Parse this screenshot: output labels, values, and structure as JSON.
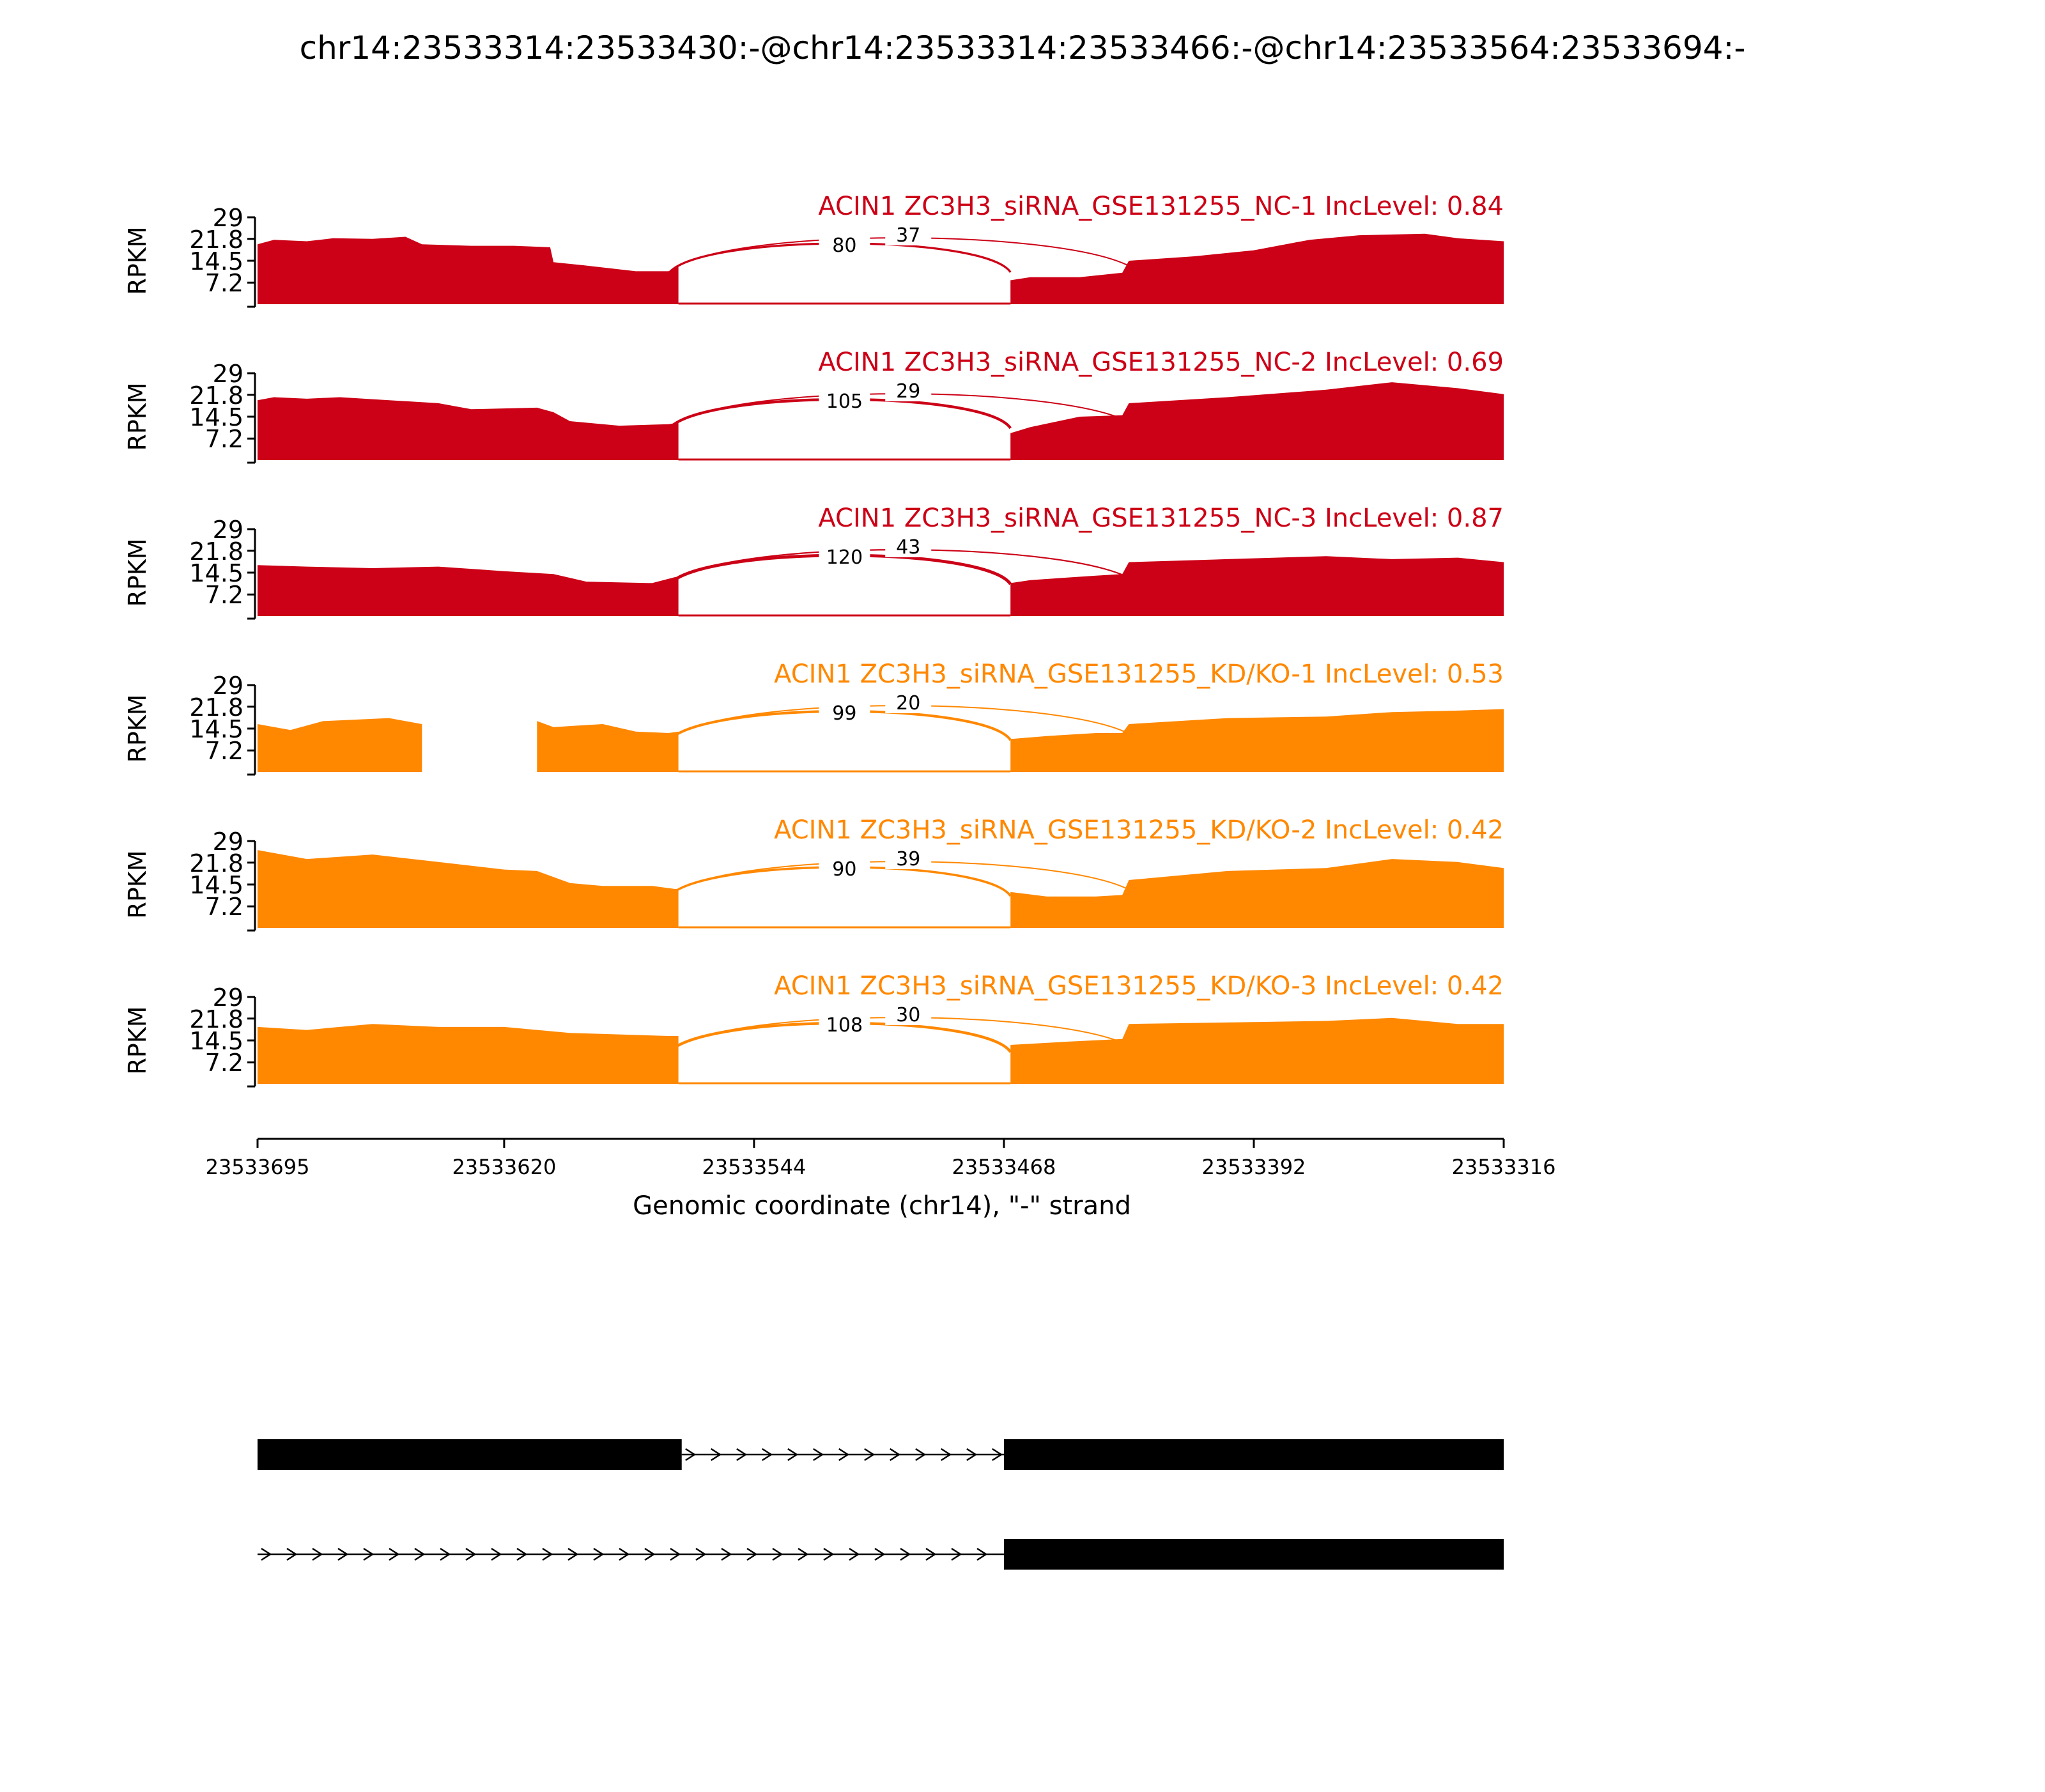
{
  "title": "chr14:23533314:23533430:-@chr14:23533314:23533466:-@chr14:23533564:23533694:-",
  "colors": {
    "nc": "#cc0016",
    "kd": "#ff8800",
    "text": "#000000",
    "axis": "#000000"
  },
  "chart_data": {
    "type": "area",
    "chart_kind": "sashimi",
    "ylabel": "RPKM",
    "yticks": [
      7.2,
      14.5,
      21.8,
      29
    ],
    "ylim": [
      0,
      29
    ],
    "xlabel": "Genomic coordinate (chr14), \"-\" strand",
    "xticks": [
      23533695,
      23533620,
      23533544,
      23533468,
      23533392,
      23533316
    ],
    "xlim": [
      23533695,
      23533316
    ],
    "exon_regions": [
      [
        23533695,
        23533566
      ],
      [
        23533466,
        23533316
      ]
    ],
    "junction_targets": [
      23533568,
      23533466,
      23533430
    ],
    "series": [
      {
        "name": "ACIN1 ZC3H3_siRNA_GSE131255_NC-1 IncLevel: 0.84",
        "group": "nc",
        "coverage": [
          [
            23533695,
            20.0
          ],
          [
            23533690,
            21.5
          ],
          [
            23533680,
            21.0
          ],
          [
            23533672,
            22.0
          ],
          [
            23533660,
            21.8
          ],
          [
            23533650,
            22.5
          ],
          [
            23533645,
            20.0
          ],
          [
            23533630,
            19.5
          ],
          [
            23533617,
            19.5
          ],
          [
            23533606,
            19.0
          ],
          [
            23533605,
            14.0
          ],
          [
            23533596,
            13.0
          ],
          [
            23533580,
            11.0
          ],
          [
            23533570,
            11.0
          ],
          [
            23533568,
            12.0
          ],
          [
            23533567,
            12.5
          ],
          [
            23533466,
            8.0
          ],
          [
            23533460,
            9.0
          ],
          [
            23533445,
            9.0
          ],
          [
            23533432,
            10.5
          ],
          [
            23533430,
            14.5
          ],
          [
            23533410,
            16.0
          ],
          [
            23533392,
            18.0
          ],
          [
            23533375,
            21.5
          ],
          [
            23533360,
            23.0
          ],
          [
            23533340,
            23.5
          ],
          [
            23533330,
            22.0
          ],
          [
            23533316,
            21.0
          ]
        ],
        "junctions": [
          {
            "count": 80,
            "label": "80"
          },
          {
            "count": 37,
            "label": "37"
          }
        ]
      },
      {
        "name": "ACIN1 ZC3H3_siRNA_GSE131255_NC-2 IncLevel: 0.69",
        "group": "nc",
        "coverage": [
          [
            23533695,
            20.0
          ],
          [
            23533690,
            21.0
          ],
          [
            23533680,
            20.5
          ],
          [
            23533670,
            21.0
          ],
          [
            23533655,
            20.0
          ],
          [
            23533640,
            19.0
          ],
          [
            23533630,
            17.0
          ],
          [
            23533610,
            17.5
          ],
          [
            23533605,
            16.0
          ],
          [
            23533600,
            13.0
          ],
          [
            23533585,
            11.5
          ],
          [
            23533570,
            12.0
          ],
          [
            23533567,
            12.5
          ],
          [
            23533466,
            9.0
          ],
          [
            23533460,
            11.0
          ],
          [
            23533445,
            14.5
          ],
          [
            23533432,
            15.0
          ],
          [
            23533430,
            19.0
          ],
          [
            23533400,
            21.0
          ],
          [
            23533370,
            23.5
          ],
          [
            23533350,
            26.0
          ],
          [
            23533330,
            24.0
          ],
          [
            23533316,
            22.0
          ]
        ],
        "junctions": [
          {
            "count": 105,
            "label": "105"
          },
          {
            "count": 29,
            "label": "29"
          }
        ]
      },
      {
        "name": "ACIN1 ZC3H3_siRNA_GSE131255_NC-3 IncLevel: 0.87",
        "group": "nc",
        "coverage": [
          [
            23533695,
            17.0
          ],
          [
            23533680,
            16.5
          ],
          [
            23533660,
            16.0
          ],
          [
            23533640,
            16.5
          ],
          [
            23533620,
            15.0
          ],
          [
            23533605,
            14.0
          ],
          [
            23533595,
            11.5
          ],
          [
            23533575,
            11.0
          ],
          [
            23533568,
            13.0
          ],
          [
            23533567,
            13.0
          ],
          [
            23533466,
            11.0
          ],
          [
            23533460,
            12.0
          ],
          [
            23533440,
            13.5
          ],
          [
            23533432,
            14.0
          ],
          [
            23533430,
            18.0
          ],
          [
            23533400,
            19.0
          ],
          [
            23533370,
            20.0
          ],
          [
            23533350,
            19.0
          ],
          [
            23533330,
            19.5
          ],
          [
            23533316,
            18.0
          ]
        ],
        "junctions": [
          {
            "count": 120,
            "label": "120"
          },
          {
            "count": 43,
            "label": "43"
          }
        ]
      },
      {
        "name": "ACIN1 ZC3H3_siRNA_GSE131255_KD/KO-1 IncLevel: 0.53",
        "group": "kd",
        "coverage": [
          [
            23533695,
            16.0
          ],
          [
            23533685,
            14.0
          ],
          [
            23533675,
            17.0
          ],
          [
            23533655,
            18.0
          ],
          [
            23533645,
            16.0
          ],
          [
            23533610,
            17.0
          ],
          [
            23533605,
            15.0
          ],
          [
            23533590,
            16.0
          ],
          [
            23533580,
            13.5
          ],
          [
            23533570,
            13.0
          ],
          [
            23533567,
            13.5
          ],
          [
            23533466,
            11.0
          ],
          [
            23533455,
            12.0
          ],
          [
            23533440,
            13.0
          ],
          [
            23533432,
            13.0
          ],
          [
            23533430,
            16.0
          ],
          [
            23533400,
            18.0
          ],
          [
            23533370,
            18.5
          ],
          [
            23533350,
            20.0
          ],
          [
            23533330,
            20.5
          ],
          [
            23533316,
            21.0
          ]
        ],
        "junctions": [
          {
            "count": 99,
            "label": "99"
          },
          {
            "count": 20,
            "label": "20"
          }
        ]
      },
      {
        "name": "ACIN1 ZC3H3_siRNA_GSE131255_KD/KO-2 IncLevel: 0.42",
        "group": "kd",
        "coverage": [
          [
            23533695,
            26.0
          ],
          [
            23533680,
            23.0
          ],
          [
            23533660,
            24.5
          ],
          [
            23533640,
            22.0
          ],
          [
            23533620,
            19.5
          ],
          [
            23533610,
            19.0
          ],
          [
            23533600,
            15.0
          ],
          [
            23533590,
            14.0
          ],
          [
            23533575,
            14.0
          ],
          [
            23533568,
            13.0
          ],
          [
            23533567,
            13.0
          ],
          [
            23533466,
            12.0
          ],
          [
            23533455,
            10.5
          ],
          [
            23533440,
            10.5
          ],
          [
            23533432,
            11.0
          ],
          [
            23533430,
            16.0
          ],
          [
            23533400,
            19.0
          ],
          [
            23533370,
            20.0
          ],
          [
            23533350,
            23.0
          ],
          [
            23533330,
            22.0
          ],
          [
            23533316,
            20.0
          ]
        ],
        "junctions": [
          {
            "count": 90,
            "label": "90"
          },
          {
            "count": 39,
            "label": "39"
          }
        ]
      },
      {
        "name": "ACIN1 ZC3H3_siRNA_GSE131255_KD/KO-3 IncLevel: 0.42",
        "group": "kd",
        "coverage": [
          [
            23533695,
            19.0
          ],
          [
            23533680,
            18.0
          ],
          [
            23533660,
            20.0
          ],
          [
            23533640,
            19.0
          ],
          [
            23533620,
            19.0
          ],
          [
            23533600,
            17.0
          ],
          [
            23533585,
            16.5
          ],
          [
            23533570,
            16.0
          ],
          [
            23533567,
            16.0
          ],
          [
            23533466,
            13.0
          ],
          [
            23533450,
            14.0
          ],
          [
            23533432,
            15.0
          ],
          [
            23533430,
            20.0
          ],
          [
            23533400,
            20.5
          ],
          [
            23533370,
            21.0
          ],
          [
            23533350,
            22.0
          ],
          [
            23533330,
            20.0
          ],
          [
            23533316,
            20.0
          ]
        ],
        "junctions": [
          {
            "count": 108,
            "label": "108"
          },
          {
            "count": 30,
            "label": "30"
          }
        ]
      }
    ],
    "transcripts": [
      {
        "exons": [
          [
            23533695,
            23533566
          ],
          [
            23533468,
            23533316
          ]
        ],
        "intron": [
          23533566,
          23533468
        ]
      },
      {
        "exons": [
          [
            23533468,
            23533316
          ]
        ],
        "intron": [
          23533695,
          23533468
        ]
      }
    ]
  }
}
